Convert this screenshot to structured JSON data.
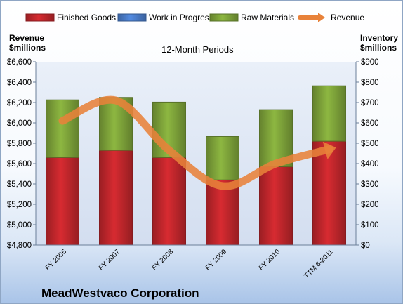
{
  "chart_data": {
    "type": "bar",
    "stacked": true,
    "subtitle": "12-Month Periods",
    "company": "MeadWestvaco Corporation",
    "categories": [
      "FY 2006",
      "FY 2007",
      "FY 2008",
      "FY 2009",
      "FY 2010",
      "TTM 6-2011"
    ],
    "series": [
      {
        "name": "Finished Goods",
        "axis": "right",
        "color": "#c0262c",
        "values": [
          430,
          465,
          430,
          320,
          385,
          510
        ]
      },
      {
        "name": "Work in Progress",
        "axis": "right",
        "color": "#4a7cc9",
        "values": [
          0,
          0,
          0,
          0,
          0,
          0
        ]
      },
      {
        "name": "Raw Materials",
        "axis": "right",
        "color": "#7ea33a",
        "values": [
          283,
          260,
          272,
          213,
          280,
          272
        ]
      },
      {
        "name": "Revenue",
        "axis": "left",
        "type": "line",
        "color": "#e8823a",
        "values": [
          6020,
          6220,
          5730,
          5380,
          5600,
          5740
        ]
      }
    ],
    "y_left": {
      "label_line1": "Revenue",
      "label_line2": "$millions",
      "min": 4800,
      "max": 6600,
      "step": 200,
      "ticks": [
        "$4,800",
        "$5,000",
        "$5,200",
        "$5,400",
        "$5,600",
        "$5,800",
        "$6,000",
        "$6,200",
        "$6,400",
        "$6,600"
      ]
    },
    "y_right": {
      "label_line1": "Inventory",
      "label_line2": "$millions",
      "min": 0,
      "max": 900,
      "step": 100,
      "ticks": [
        "$0",
        "$100",
        "$200",
        "$300",
        "$400",
        "$500",
        "$600",
        "$700",
        "$800",
        "$900"
      ]
    },
    "grid": false,
    "legend": "top"
  }
}
